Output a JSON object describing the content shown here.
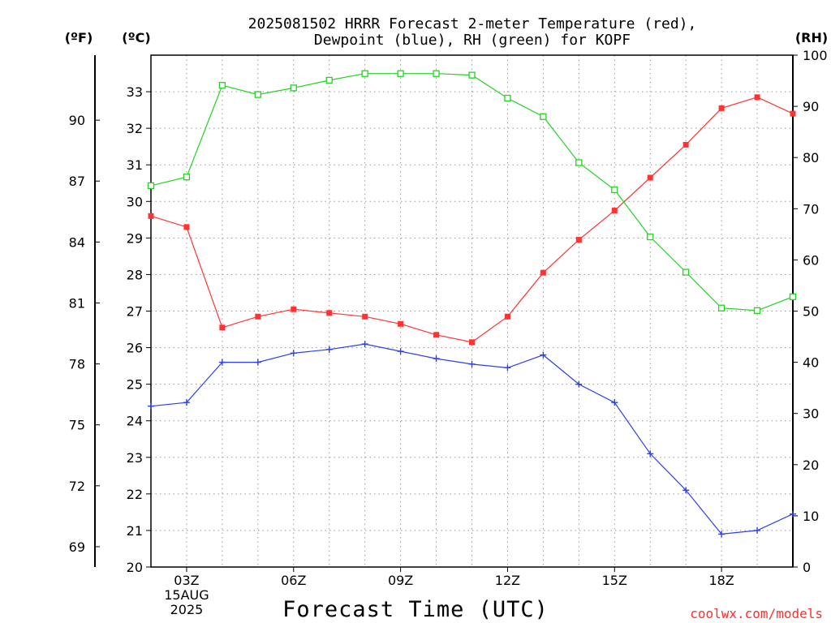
{
  "title_line1": "2025081502 HRRR Forecast 2-meter Temperature (red),",
  "title_line2": "Dewpoint (blue), RH (green) for KOPF",
  "units": {
    "fahrenheit": "(ºF)",
    "celsius": "(ºC)",
    "rh": "(RH)"
  },
  "credit": "coolwx.com/models",
  "colors": {
    "temperature": "#ff3333",
    "dewpoint": "#2b3ff0",
    "rh": "#22d422",
    "grid": "#999999"
  },
  "chart_data": {
    "type": "line",
    "title": "2025081502 HRRR Forecast 2-meter Temperature (red), Dewpoint (blue), RH (green) for KOPF",
    "xlabel": "Forecast Time (UTC)",
    "x_tick_labels": [
      {
        "hour": 3,
        "lines": [
          "03Z",
          "15AUG",
          "2025"
        ]
      },
      {
        "hour": 6,
        "lines": [
          "06Z"
        ]
      },
      {
        "hour": 9,
        "lines": [
          "09Z"
        ]
      },
      {
        "hour": 12,
        "lines": [
          "12Z"
        ]
      },
      {
        "hour": 15,
        "lines": [
          "15Z"
        ]
      },
      {
        "hour": 18,
        "lines": [
          "18Z"
        ]
      }
    ],
    "xlim": [
      2,
      20
    ],
    "x": [
      2,
      3,
      4,
      5,
      6,
      7,
      8,
      9,
      10,
      11,
      12,
      13,
      14,
      15,
      16,
      17,
      18,
      19,
      20
    ],
    "left_axis": {
      "label": "(ºC)",
      "ylim": [
        20,
        34
      ],
      "ticks": [
        20,
        21,
        22,
        23,
        24,
        25,
        26,
        27,
        28,
        29,
        30,
        31,
        32,
        33
      ]
    },
    "fahrenheit_axis": {
      "label": "(ºF)",
      "ticks": [
        69,
        72,
        75,
        78,
        81,
        84,
        87,
        90
      ]
    },
    "right_axis": {
      "label": "(RH)",
      "ylim": [
        0,
        100
      ],
      "ticks": [
        0,
        10,
        20,
        30,
        40,
        50,
        60,
        70,
        80,
        90,
        100
      ]
    },
    "series": [
      {
        "name": "Temperature",
        "axis": "celsius",
        "marker": "filled-square",
        "color": "#ff3333",
        "values": [
          29.6,
          29.3,
          26.55,
          26.85,
          27.05,
          26.95,
          26.85,
          26.65,
          26.35,
          26.15,
          26.85,
          28.05,
          28.95,
          29.75,
          30.65,
          31.55,
          32.55,
          32.85,
          32.4
        ]
      },
      {
        "name": "Dewpoint",
        "axis": "celsius",
        "marker": "plus",
        "color": "#2b3ff0",
        "values": [
          24.4,
          24.5,
          25.6,
          25.6,
          25.85,
          25.95,
          26.1,
          25.9,
          25.7,
          25.55,
          25.45,
          25.8,
          25.0,
          24.5,
          23.1,
          22.1,
          20.9,
          21.0,
          21.45
        ]
      },
      {
        "name": "RH",
        "axis": "rh",
        "marker": "open-square",
        "color": "#22d422",
        "values": [
          74.5,
          76.2,
          94.1,
          92.3,
          93.6,
          95.1,
          96.4,
          96.4,
          96.4,
          96.1,
          91.6,
          88.0,
          79.0,
          73.7,
          64.5,
          57.6,
          50.6,
          50.1,
          52.8
        ]
      }
    ],
    "grid": true
  }
}
